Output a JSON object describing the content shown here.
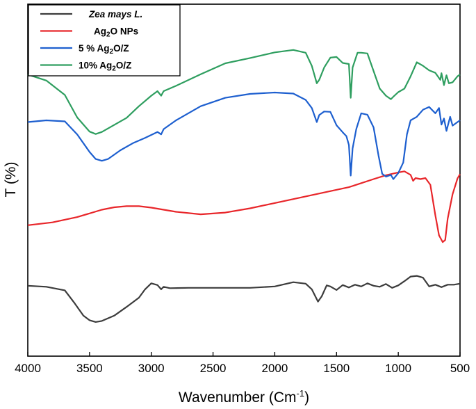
{
  "chart_data": {
    "type": "line",
    "title": "",
    "xlabel": "Wavenumber (Cm",
    "xlabel_superscript": "-1",
    "xlabel_suffix": ")",
    "ylabel": "T (%)",
    "xlim": [
      4000,
      500
    ],
    "x_reversed": true,
    "y_tick_labels_shown": false,
    "x_ticks": [
      4000,
      3500,
      3000,
      2500,
      2000,
      1500,
      1000,
      500
    ],
    "x_tick_labels": [
      "4000",
      "3500",
      "3000",
      "2500",
      "2000",
      "1500",
      "1000",
      "500"
    ],
    "grid": false,
    "legend_placement": "top-left",
    "ylim": [
      0,
      100
    ],
    "series": [
      {
        "name": "Zea mays L.",
        "legend_main": "Zea mays L.",
        "legend_sub": "",
        "legend_tail": "",
        "legend_italic": true,
        "color": "#3c3c3c",
        "points": [
          [
            4000,
            20
          ],
          [
            3850,
            19.7
          ],
          [
            3700,
            18.7
          ],
          [
            3620,
            15
          ],
          [
            3550,
            11.5
          ],
          [
            3500,
            10.2
          ],
          [
            3450,
            9.7
          ],
          [
            3400,
            10
          ],
          [
            3300,
            11.5
          ],
          [
            3200,
            14
          ],
          [
            3100,
            16.6
          ],
          [
            3050,
            19
          ],
          [
            3000,
            20.7
          ],
          [
            2950,
            20.2
          ],
          [
            2920,
            19
          ],
          [
            2900,
            19.7
          ],
          [
            2850,
            19.3
          ],
          [
            2700,
            19.4
          ],
          [
            2500,
            19.4
          ],
          [
            2200,
            19.4
          ],
          [
            2000,
            19.8
          ],
          [
            1850,
            21
          ],
          [
            1750,
            20.6
          ],
          [
            1700,
            19
          ],
          [
            1650,
            15.5
          ],
          [
            1620,
            17
          ],
          [
            1580,
            20.1
          ],
          [
            1550,
            19.8
          ],
          [
            1500,
            18.8
          ],
          [
            1450,
            20.2
          ],
          [
            1400,
            19.5
          ],
          [
            1350,
            20.3
          ],
          [
            1300,
            19.8
          ],
          [
            1250,
            20.7
          ],
          [
            1200,
            20
          ],
          [
            1150,
            19.7
          ],
          [
            1100,
            20.5
          ],
          [
            1050,
            19.4
          ],
          [
            1000,
            20.1
          ],
          [
            950,
            21.3
          ],
          [
            900,
            22.6
          ],
          [
            850,
            22.8
          ],
          [
            800,
            22.3
          ],
          [
            750,
            19.8
          ],
          [
            700,
            20.3
          ],
          [
            650,
            19.6
          ],
          [
            600,
            20.3
          ],
          [
            550,
            20.3
          ],
          [
            500,
            20.6
          ]
        ]
      },
      {
        "name": "Ag2O NPs",
        "legend_main": "Ag",
        "legend_sub": "2",
        "legend_tail": "O NPs",
        "legend_italic": false,
        "color": "#e8262a",
        "points": [
          [
            4000,
            37.2
          ],
          [
            3800,
            38
          ],
          [
            3600,
            39.5
          ],
          [
            3400,
            41.6
          ],
          [
            3300,
            42.3
          ],
          [
            3200,
            42.6
          ],
          [
            3100,
            42.6
          ],
          [
            3000,
            42.2
          ],
          [
            2800,
            41
          ],
          [
            2600,
            40.3
          ],
          [
            2400,
            40.8
          ],
          [
            2200,
            42
          ],
          [
            2000,
            43.5
          ],
          [
            1800,
            45
          ],
          [
            1600,
            46.5
          ],
          [
            1400,
            48
          ],
          [
            1200,
            50.3
          ],
          [
            1100,
            51.4
          ],
          [
            1000,
            52.2
          ],
          [
            950,
            52.5
          ],
          [
            900,
            51.5
          ],
          [
            880,
            49.8
          ],
          [
            860,
            50.6
          ],
          [
            820,
            50.3
          ],
          [
            780,
            50.6
          ],
          [
            740,
            48.7
          ],
          [
            700,
            40
          ],
          [
            670,
            34.3
          ],
          [
            640,
            32.4
          ],
          [
            620,
            33
          ],
          [
            600,
            39
          ],
          [
            560,
            46
          ],
          [
            520,
            50.5
          ],
          [
            500,
            51.7
          ]
        ]
      },
      {
        "name": "5 % Ag2O/Z",
        "legend_main": "5 % Ag",
        "legend_sub": "2",
        "legend_tail": "O/Z",
        "legend_italic": false,
        "color": "#1d5fcf",
        "points": [
          [
            4000,
            66.5
          ],
          [
            3850,
            67
          ],
          [
            3700,
            66.7
          ],
          [
            3600,
            63
          ],
          [
            3500,
            58
          ],
          [
            3450,
            56
          ],
          [
            3400,
            55.5
          ],
          [
            3350,
            56
          ],
          [
            3250,
            58.5
          ],
          [
            3150,
            60.5
          ],
          [
            3050,
            62
          ],
          [
            2950,
            63.7
          ],
          [
            2920,
            63
          ],
          [
            2900,
            64.5
          ],
          [
            2800,
            67
          ],
          [
            2600,
            71
          ],
          [
            2400,
            73.4
          ],
          [
            2200,
            74.5
          ],
          [
            2000,
            74.9
          ],
          [
            1850,
            74.6
          ],
          [
            1750,
            72.8
          ],
          [
            1700,
            70.5
          ],
          [
            1660,
            66.5
          ],
          [
            1640,
            68.5
          ],
          [
            1600,
            69.5
          ],
          [
            1550,
            69.4
          ],
          [
            1500,
            65.6
          ],
          [
            1450,
            63.6
          ],
          [
            1420,
            62.5
          ],
          [
            1400,
            60
          ],
          [
            1385,
            51.3
          ],
          [
            1370,
            59
          ],
          [
            1340,
            64.5
          ],
          [
            1300,
            69
          ],
          [
            1250,
            68.6
          ],
          [
            1200,
            65
          ],
          [
            1160,
            57
          ],
          [
            1130,
            51.8
          ],
          [
            1100,
            51
          ],
          [
            1060,
            51.5
          ],
          [
            1040,
            50.3
          ],
          [
            1000,
            52
          ],
          [
            960,
            55
          ],
          [
            930,
            63
          ],
          [
            900,
            67
          ],
          [
            850,
            68
          ],
          [
            800,
            70
          ],
          [
            750,
            70.8
          ],
          [
            700,
            69
          ],
          [
            670,
            70.5
          ],
          [
            650,
            65.8
          ],
          [
            630,
            67.5
          ],
          [
            610,
            64
          ],
          [
            580,
            68
          ],
          [
            560,
            65.5
          ],
          [
            520,
            66.5
          ],
          [
            500,
            67
          ]
        ]
      },
      {
        "name": "10% Ag2O/Z",
        "legend_main": "10% Ag",
        "legend_sub": "2",
        "legend_tail": "O/Z",
        "legend_italic": false,
        "color": "#2e9e5f",
        "points": [
          [
            4000,
            80
          ],
          [
            3850,
            78.3
          ],
          [
            3700,
            74.2
          ],
          [
            3600,
            67.8
          ],
          [
            3500,
            63.8
          ],
          [
            3450,
            63.1
          ],
          [
            3400,
            63.7
          ],
          [
            3300,
            65.7
          ],
          [
            3200,
            67.7
          ],
          [
            3100,
            71
          ],
          [
            3000,
            74
          ],
          [
            2950,
            75.3
          ],
          [
            2920,
            74
          ],
          [
            2900,
            75.3
          ],
          [
            2800,
            76.8
          ],
          [
            2600,
            80.1
          ],
          [
            2400,
            83.2
          ],
          [
            2200,
            84.7
          ],
          [
            2000,
            86.3
          ],
          [
            1850,
            87
          ],
          [
            1750,
            86.2
          ],
          [
            1700,
            82.5
          ],
          [
            1660,
            77.5
          ],
          [
            1640,
            78.5
          ],
          [
            1600,
            82
          ],
          [
            1550,
            84.8
          ],
          [
            1500,
            85
          ],
          [
            1450,
            83.3
          ],
          [
            1400,
            83
          ],
          [
            1385,
            73.4
          ],
          [
            1370,
            82
          ],
          [
            1330,
            86.2
          ],
          [
            1300,
            86.2
          ],
          [
            1250,
            86
          ],
          [
            1200,
            81
          ],
          [
            1150,
            76
          ],
          [
            1100,
            74
          ],
          [
            1060,
            73
          ],
          [
            1040,
            73.7
          ],
          [
            1000,
            75
          ],
          [
            950,
            76
          ],
          [
            900,
            79.5
          ],
          [
            850,
            83.5
          ],
          [
            800,
            82.5
          ],
          [
            750,
            81.2
          ],
          [
            700,
            80.5
          ],
          [
            660,
            78.5
          ],
          [
            650,
            80.4
          ],
          [
            630,
            77
          ],
          [
            610,
            79.8
          ],
          [
            590,
            77.5
          ],
          [
            560,
            77.8
          ],
          [
            520,
            79.5
          ],
          [
            500,
            80
          ]
        ]
      }
    ]
  }
}
